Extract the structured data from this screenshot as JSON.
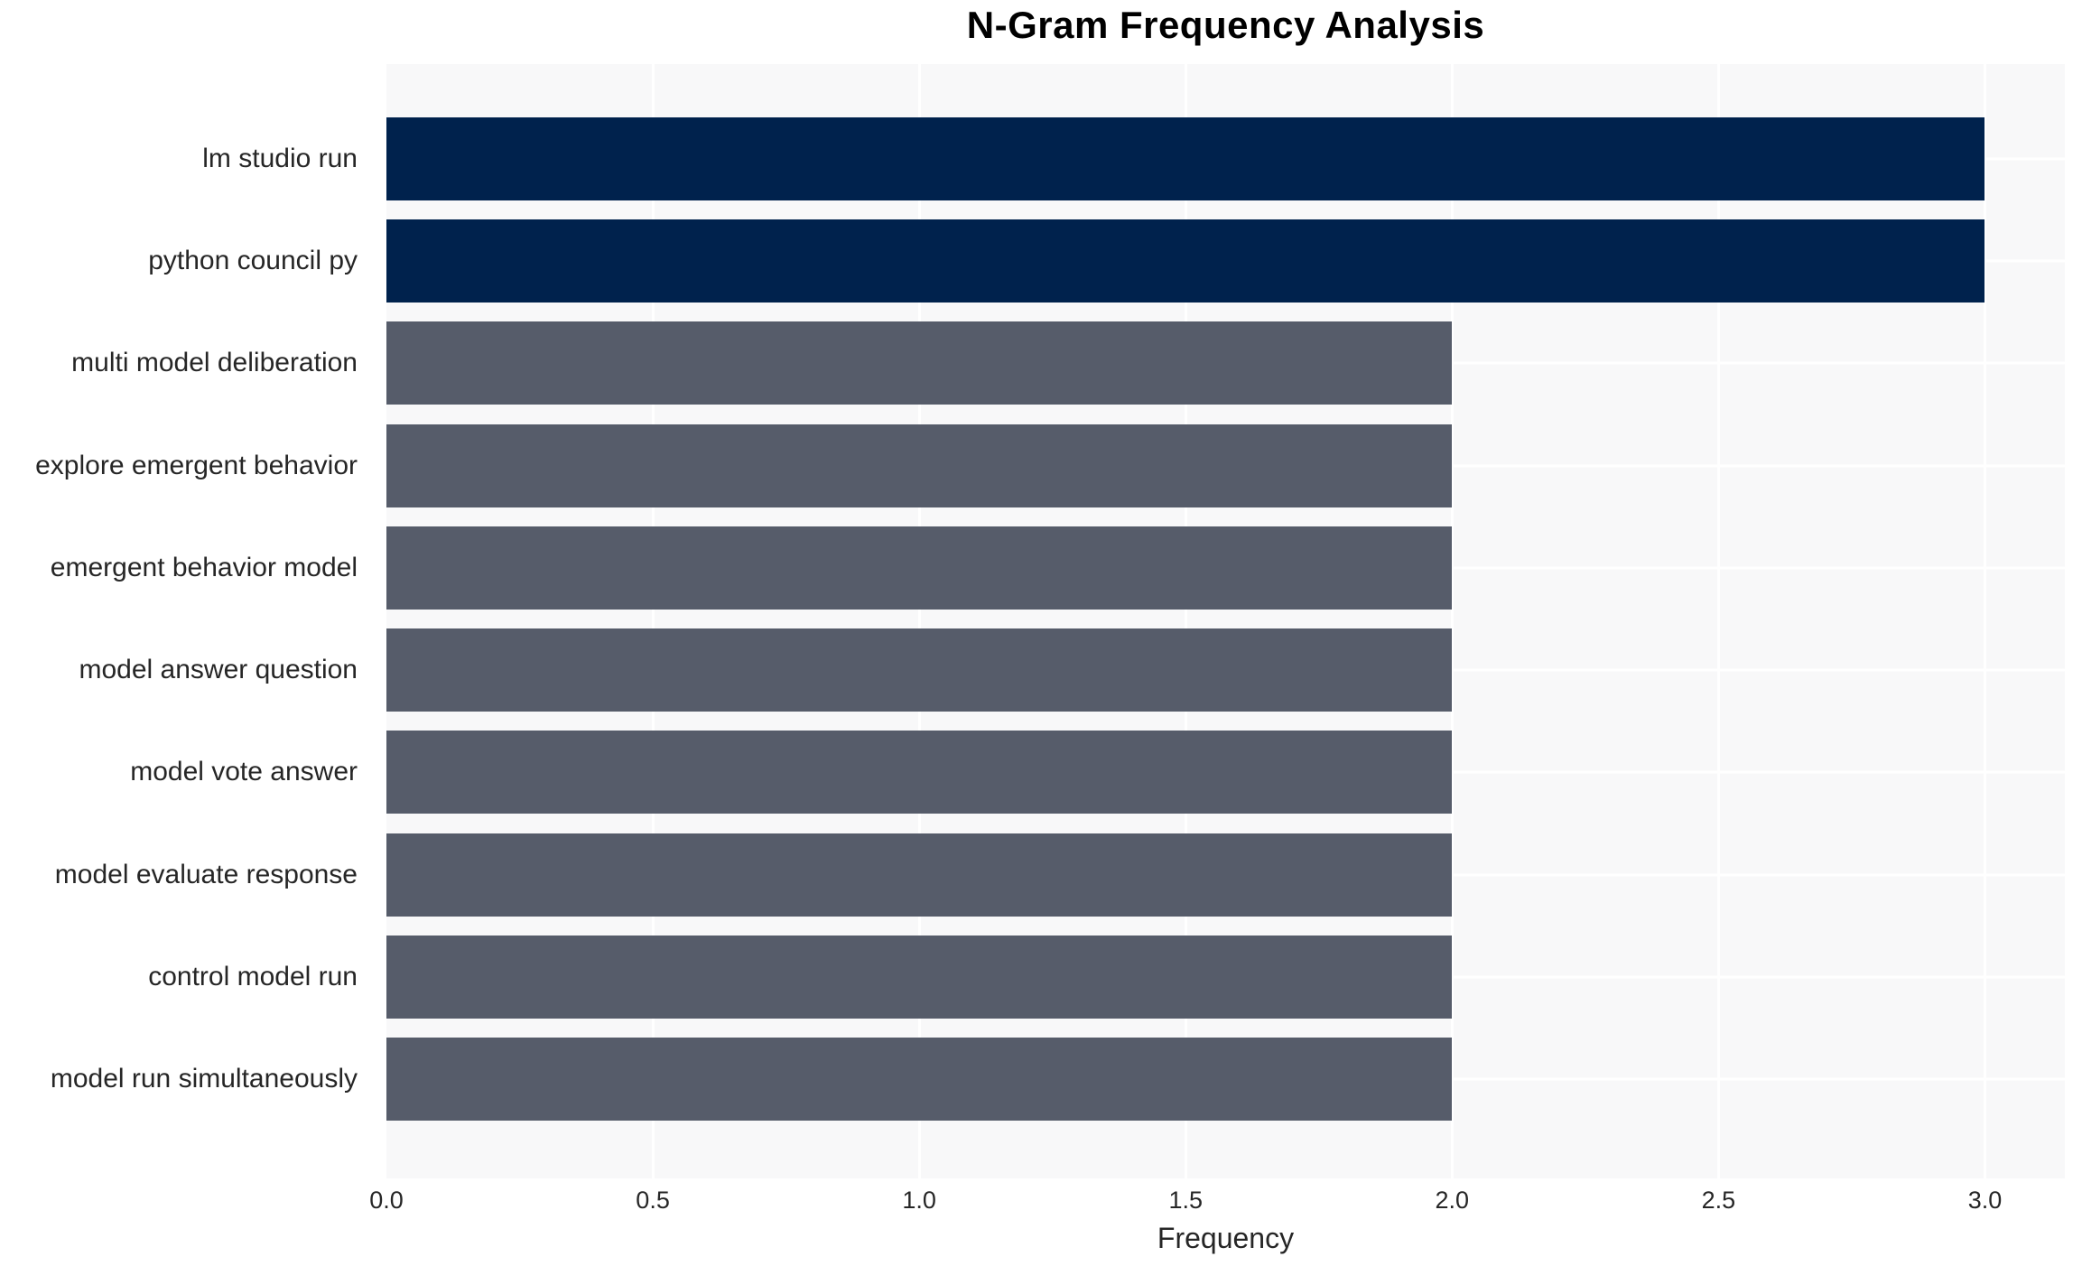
{
  "chart_data": {
    "type": "bar",
    "orientation": "horizontal",
    "title": "N-Gram Frequency Analysis",
    "xlabel": "Frequency",
    "ylabel": "",
    "categories": [
      "lm studio run",
      "python council py",
      "multi model deliberation",
      "explore emergent behavior",
      "emergent behavior model",
      "model answer question",
      "model vote answer",
      "model evaluate response",
      "control model run",
      "model run simultaneously"
    ],
    "values": [
      3,
      3,
      2,
      2,
      2,
      2,
      2,
      2,
      2,
      2
    ],
    "bar_colors": [
      "#00224d",
      "#00224d",
      "#565c6a",
      "#565c6a",
      "#565c6a",
      "#565c6a",
      "#565c6a",
      "#565c6a",
      "#565c6a",
      "#565c6a"
    ],
    "xlim": [
      0,
      3.15
    ],
    "xticks": [
      "0.0",
      "0.5",
      "1.0",
      "1.5",
      "2.0",
      "2.5",
      "3.0"
    ],
    "grid": true,
    "legend": "none",
    "colors": {
      "bar_high": "#00224d",
      "bar_normal": "#565c6a",
      "plot_background": "#f8f8f9",
      "gridline": "#ffffff",
      "figure_background": "#ffffff",
      "tick_text": "#262626",
      "title_text": "#000000"
    }
  }
}
